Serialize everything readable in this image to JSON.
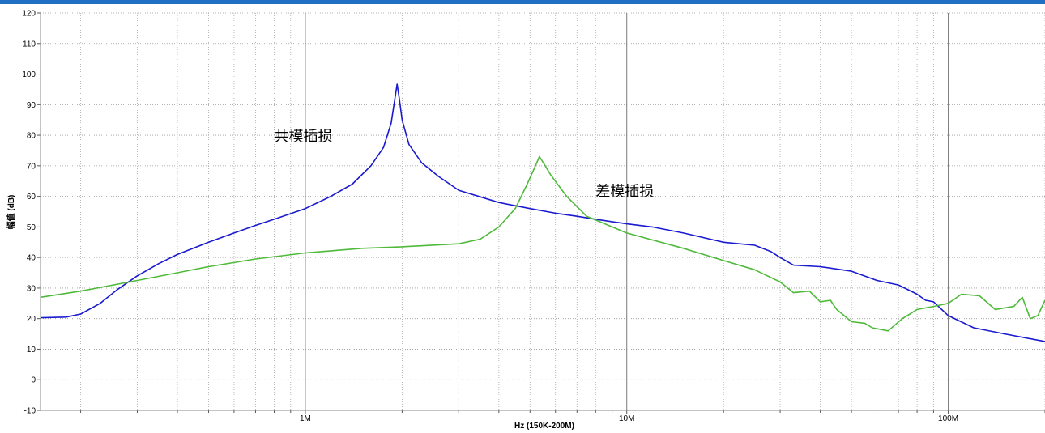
{
  "chart_data": {
    "type": "line",
    "title": "",
    "xlabel": "Hz  (150K-200M)",
    "ylabel": "幅值 (dB)",
    "x_scale": "log",
    "xlim": [
      150000,
      200000000
    ],
    "ylim": [
      -10,
      120
    ],
    "x_tick_labels": [
      {
        "value": 1000000,
        "label": "1M"
      },
      {
        "value": 10000000,
        "label": "10M"
      },
      {
        "value": 100000000,
        "label": "100M"
      }
    ],
    "y_ticks": [
      -10,
      0,
      10,
      20,
      30,
      40,
      50,
      60,
      70,
      80,
      90,
      100,
      110,
      120
    ],
    "grid": true,
    "legend": "none",
    "series": [
      {
        "name": "共模插损",
        "color": "#1a1ad0",
        "points": [
          [
            150000,
            20.3
          ],
          [
            180000,
            20.5
          ],
          [
            200000,
            21.5
          ],
          [
            230000,
            25
          ],
          [
            260000,
            29.5
          ],
          [
            300000,
            34
          ],
          [
            350000,
            38
          ],
          [
            400000,
            41
          ],
          [
            500000,
            45
          ],
          [
            600000,
            48
          ],
          [
            700000,
            50.5
          ],
          [
            800000,
            52.5
          ],
          [
            1000000,
            56
          ],
          [
            1200000,
            60
          ],
          [
            1400000,
            64
          ],
          [
            1600000,
            70
          ],
          [
            1750000,
            76
          ],
          [
            1850000,
            84
          ],
          [
            1900000,
            92
          ],
          [
            1930000,
            96.7
          ],
          [
            1960000,
            92
          ],
          [
            2000000,
            85
          ],
          [
            2100000,
            77
          ],
          [
            2300000,
            71
          ],
          [
            2600000,
            66.5
          ],
          [
            3000000,
            62
          ],
          [
            4000000,
            58
          ],
          [
            5000000,
            56
          ],
          [
            6000000,
            54.5
          ],
          [
            7000000,
            53.5
          ],
          [
            8000000,
            52.5
          ],
          [
            10000000,
            51
          ],
          [
            12000000,
            50
          ],
          [
            15000000,
            48
          ],
          [
            20000000,
            45
          ],
          [
            25000000,
            44
          ],
          [
            28000000,
            42
          ],
          [
            30000000,
            40
          ],
          [
            33000000,
            37.5
          ],
          [
            40000000,
            37
          ],
          [
            50000000,
            35.5
          ],
          [
            60000000,
            32.5
          ],
          [
            70000000,
            31
          ],
          [
            80000000,
            28
          ],
          [
            85000000,
            26
          ],
          [
            90000000,
            25.5
          ],
          [
            100000000,
            21
          ],
          [
            120000000,
            17
          ],
          [
            150000000,
            15
          ],
          [
            200000000,
            12.5
          ]
        ]
      },
      {
        "name": "差模插损",
        "color": "#4fba3a",
        "points": [
          [
            150000,
            27
          ],
          [
            200000,
            29
          ],
          [
            300000,
            32.5
          ],
          [
            400000,
            35
          ],
          [
            500000,
            37
          ],
          [
            700000,
            39.5
          ],
          [
            1000000,
            41.5
          ],
          [
            1500000,
            43
          ],
          [
            2000000,
            43.5
          ],
          [
            3000000,
            44.5
          ],
          [
            3500000,
            46
          ],
          [
            4000000,
            50
          ],
          [
            4500000,
            56
          ],
          [
            4900000,
            64
          ],
          [
            5200000,
            70
          ],
          [
            5350000,
            73
          ],
          [
            5500000,
            71
          ],
          [
            5800000,
            67
          ],
          [
            6500000,
            60
          ],
          [
            7500000,
            53.5
          ],
          [
            10000000,
            48
          ],
          [
            15000000,
            43
          ],
          [
            20000000,
            39
          ],
          [
            25000000,
            36
          ],
          [
            30000000,
            32
          ],
          [
            33000000,
            28.5
          ],
          [
            37000000,
            29
          ],
          [
            40000000,
            25.5
          ],
          [
            43000000,
            26
          ],
          [
            45000000,
            23
          ],
          [
            50000000,
            19
          ],
          [
            55000000,
            18.5
          ],
          [
            58000000,
            17
          ],
          [
            65000000,
            16
          ],
          [
            72000000,
            20
          ],
          [
            80000000,
            23
          ],
          [
            90000000,
            24
          ],
          [
            100000000,
            25
          ],
          [
            110000000,
            28
          ],
          [
            125000000,
            27.5
          ],
          [
            140000000,
            23
          ],
          [
            160000000,
            24
          ],
          [
            170000000,
            27
          ],
          [
            180000000,
            20
          ],
          [
            190000000,
            21
          ],
          [
            200000000,
            26
          ]
        ]
      }
    ],
    "annotations": [
      {
        "text": "共模插损",
        "x": 800000,
        "y": 78
      },
      {
        "text": "差模插损",
        "x": 8000000,
        "y": 60
      }
    ]
  }
}
